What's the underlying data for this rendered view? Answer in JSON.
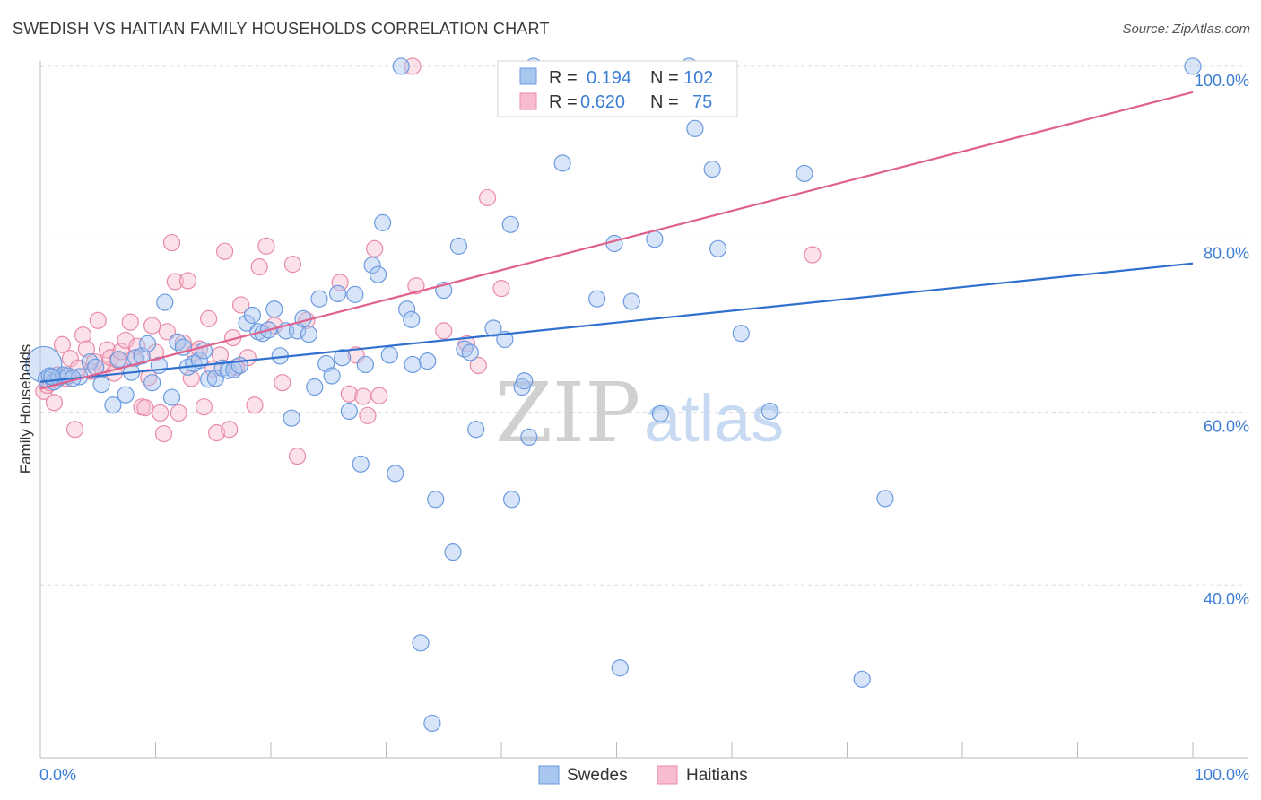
{
  "title": "SWEDISH VS HAITIAN FAMILY HOUSEHOLDS CORRELATION CHART",
  "source": "Source: ZipAtlas.com",
  "watermark": {
    "zip": "ZIP",
    "atlas": "atlas"
  },
  "colors": {
    "swedes_fill": "#a9c6ef",
    "swedes_stroke": "#6b9ae0",
    "swedes_line": "#2f6fce",
    "haitians_fill": "#f7bccd",
    "haitians_stroke": "#e88aa8",
    "haitians_line": "#e0628c",
    "grid": "#dddddd",
    "tick_text": "#3d7fd4"
  },
  "legend": {
    "rows": [
      {
        "r_label": "R =",
        "r_value": "0.194",
        "n_label": "N =",
        "n_value": "102"
      },
      {
        "r_label": "R =",
        "r_value": "0.620",
        "n_label": "N =",
        "n_value": "75"
      }
    ]
  },
  "bottom_legend": {
    "swedes": "Swedes",
    "haitians": "Haitians"
  },
  "chart_data": {
    "type": "scatter",
    "title": "SWEDISH VS HAITIAN FAMILY HOUSEHOLDS CORRELATION CHART",
    "xlabel": "",
    "ylabel": "Family Households",
    "xlim": [
      0,
      100
    ],
    "ylim": [
      20,
      103
    ],
    "x_tick_labels": [
      "0.0%",
      "100.0%"
    ],
    "y_ticks": [
      40,
      60,
      80,
      100
    ],
    "y_tick_labels": [
      "40.0%",
      "60.0%",
      "80.0%",
      "100.0%"
    ],
    "grid": true,
    "legend_position": "top-center",
    "series": [
      {
        "name": "Swedes",
        "r": 0.194,
        "n": 102,
        "trend": [
          [
            0,
            63.5
          ],
          [
            100,
            77.2
          ]
        ],
        "points": [
          [
            0.3,
            65.5
          ],
          [
            0.5,
            63.8
          ],
          [
            0.8,
            64.2
          ],
          [
            1.2,
            63.5
          ],
          [
            1.6,
            64.0
          ],
          [
            2.0,
            64.3
          ],
          [
            2.4,
            64.2
          ],
          [
            3.4,
            64.1
          ],
          [
            4.3,
            65.8
          ],
          [
            4.8,
            65.2
          ],
          [
            5.3,
            63.2
          ],
          [
            6.3,
            60.8
          ],
          [
            6.8,
            66.1
          ],
          [
            7.4,
            62.0
          ],
          [
            7.9,
            64.6
          ],
          [
            8.3,
            66.3
          ],
          [
            8.8,
            66.5
          ],
          [
            9.3,
            67.9
          ],
          [
            9.7,
            63.4
          ],
          [
            10.3,
            65.4
          ],
          [
            10.8,
            72.7
          ],
          [
            11.4,
            61.7
          ],
          [
            11.9,
            68.1
          ],
          [
            12.4,
            67.5
          ],
          [
            12.8,
            65.2
          ],
          [
            13.3,
            65.6
          ],
          [
            13.8,
            66.0
          ],
          [
            14.2,
            67.1
          ],
          [
            14.6,
            63.8
          ],
          [
            15.2,
            63.9
          ],
          [
            15.8,
            65.1
          ],
          [
            16.3,
            64.8
          ],
          [
            16.8,
            64.9
          ],
          [
            17.3,
            65.4
          ],
          [
            17.9,
            70.3
          ],
          [
            18.4,
            71.2
          ],
          [
            18.9,
            69.3
          ],
          [
            19.3,
            69.1
          ],
          [
            19.8,
            69.5
          ],
          [
            20.3,
            71.9
          ],
          [
            20.8,
            66.5
          ],
          [
            21.3,
            69.4
          ],
          [
            21.8,
            59.3
          ],
          [
            22.3,
            69.4
          ],
          [
            22.8,
            70.8
          ],
          [
            23.3,
            69.0
          ],
          [
            23.8,
            62.9
          ],
          [
            24.2,
            73.1
          ],
          [
            24.8,
            65.6
          ],
          [
            25.3,
            64.2
          ],
          [
            25.8,
            73.7
          ],
          [
            26.2,
            66.3
          ],
          [
            26.8,
            60.1
          ],
          [
            27.3,
            73.6
          ],
          [
            27.8,
            54.0
          ],
          [
            28.2,
            65.5
          ],
          [
            28.8,
            77.0
          ],
          [
            29.3,
            75.9
          ],
          [
            29.7,
            81.9
          ],
          [
            30.3,
            66.6
          ],
          [
            30.8,
            52.9
          ],
          [
            31.3,
            100.0
          ],
          [
            31.8,
            71.9
          ],
          [
            32.2,
            70.7
          ],
          [
            32.3,
            65.5
          ],
          [
            33.0,
            33.3
          ],
          [
            33.6,
            65.9
          ],
          [
            34.0,
            24.0
          ],
          [
            34.3,
            49.9
          ],
          [
            35.0,
            74.1
          ],
          [
            35.8,
            43.8
          ],
          [
            36.3,
            79.2
          ],
          [
            36.8,
            67.3
          ],
          [
            37.3,
            66.9
          ],
          [
            37.8,
            58.0
          ],
          [
            39.3,
            69.7
          ],
          [
            40.3,
            68.4
          ],
          [
            40.8,
            81.7
          ],
          [
            40.9,
            49.9
          ],
          [
            41.8,
            62.9
          ],
          [
            42.0,
            63.6
          ],
          [
            42.4,
            57.1
          ],
          [
            42.8,
            100.0
          ],
          [
            45.3,
            88.8
          ],
          [
            48.3,
            73.1
          ],
          [
            49.8,
            79.5
          ],
          [
            50.3,
            30.4
          ],
          [
            51.3,
            72.8
          ],
          [
            53.3,
            80.0
          ],
          [
            53.8,
            59.8
          ],
          [
            56.3,
            100.0
          ],
          [
            56.8,
            92.8
          ],
          [
            58.3,
            88.1
          ],
          [
            58.8,
            78.9
          ],
          [
            60.8,
            69.1
          ],
          [
            63.3,
            60.1
          ],
          [
            66.3,
            87.6
          ],
          [
            71.3,
            29.1
          ],
          [
            73.3,
            50.0
          ],
          [
            100.0,
            100.0
          ],
          [
            1.0,
            64.1
          ],
          [
            2.8,
            63.9
          ]
        ]
      },
      {
        "name": "Haitians",
        "r": 0.62,
        "n": 75,
        "trend": [
          [
            0,
            62.7
          ],
          [
            100,
            97.0
          ]
        ],
        "points": [
          [
            0.3,
            62.4
          ],
          [
            0.6,
            63.1
          ],
          [
            0.9,
            63.4
          ],
          [
            1.2,
            61.1
          ],
          [
            1.5,
            64.3
          ],
          [
            1.9,
            67.8
          ],
          [
            2.2,
            63.9
          ],
          [
            2.6,
            66.2
          ],
          [
            3.0,
            58.0
          ],
          [
            3.3,
            65.1
          ],
          [
            3.7,
            68.9
          ],
          [
            4.0,
            67.3
          ],
          [
            4.4,
            64.7
          ],
          [
            4.7,
            65.8
          ],
          [
            5.0,
            70.6
          ],
          [
            5.4,
            65.0
          ],
          [
            5.8,
            67.2
          ],
          [
            6.1,
            66.3
          ],
          [
            6.4,
            64.5
          ],
          [
            6.7,
            66.0
          ],
          [
            7.0,
            67.0
          ],
          [
            7.4,
            68.3
          ],
          [
            7.8,
            70.4
          ],
          [
            8.1,
            66.2
          ],
          [
            8.4,
            67.6
          ],
          [
            8.8,
            60.6
          ],
          [
            9.1,
            60.5
          ],
          [
            9.4,
            64.0
          ],
          [
            9.7,
            70.0
          ],
          [
            10.0,
            66.9
          ],
          [
            10.4,
            59.9
          ],
          [
            10.7,
            57.5
          ],
          [
            11.0,
            69.3
          ],
          [
            11.4,
            79.6
          ],
          [
            11.7,
            75.1
          ],
          [
            12.0,
            59.9
          ],
          [
            12.4,
            68.0
          ],
          [
            12.8,
            75.2
          ],
          [
            13.1,
            63.9
          ],
          [
            13.4,
            66.9
          ],
          [
            13.8,
            67.3
          ],
          [
            14.2,
            60.6
          ],
          [
            14.6,
            70.8
          ],
          [
            15.0,
            65.0
          ],
          [
            15.3,
            57.6
          ],
          [
            15.6,
            66.6
          ],
          [
            16.0,
            78.6
          ],
          [
            16.4,
            58.0
          ],
          [
            16.7,
            68.6
          ],
          [
            17.0,
            65.2
          ],
          [
            17.4,
            72.4
          ],
          [
            18.0,
            66.3
          ],
          [
            18.6,
            60.8
          ],
          [
            19.0,
            76.8
          ],
          [
            19.6,
            79.2
          ],
          [
            20.3,
            70.0
          ],
          [
            21.0,
            63.4
          ],
          [
            21.9,
            77.1
          ],
          [
            22.3,
            54.9
          ],
          [
            23.1,
            70.6
          ],
          [
            26.0,
            75.0
          ],
          [
            26.8,
            62.1
          ],
          [
            27.4,
            66.6
          ],
          [
            28.0,
            61.8
          ],
          [
            28.4,
            59.6
          ],
          [
            29.0,
            78.9
          ],
          [
            29.4,
            61.9
          ],
          [
            32.3,
            100.0
          ],
          [
            32.6,
            74.6
          ],
          [
            35.0,
            69.4
          ],
          [
            37.0,
            67.9
          ],
          [
            38.0,
            65.4
          ],
          [
            38.8,
            84.8
          ],
          [
            40.0,
            74.3
          ],
          [
            67.0,
            78.2
          ]
        ]
      }
    ]
  }
}
